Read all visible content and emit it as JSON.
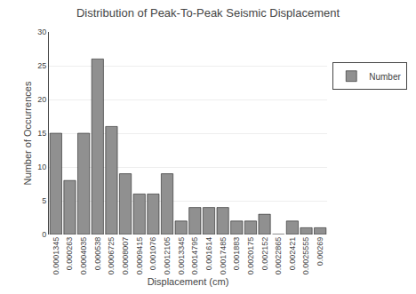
{
  "chart_data": {
    "type": "bar",
    "title": "Distribution of Peak-To-Peak Seismic Displacement",
    "xlabel": "Displacement (cm)",
    "ylabel": "Number of Occurrences",
    "categories": [
      "0.0001345",
      "0.000263",
      "0.0004035",
      "0.000538",
      "0.0006725",
      "0.0008007",
      "0.0009415",
      "0.001076",
      "0.0012105",
      "0.0013345",
      "0.0014795",
      "0.001614",
      "0.0017485",
      "0.001883",
      "0.0020175",
      "0.002152",
      "0.0022865",
      "0.002421",
      "0.0025555",
      "0.00269"
    ],
    "series": [
      {
        "name": "Number",
        "color": "#909090",
        "values": [
          15,
          8,
          15,
          26,
          16,
          9,
          6,
          6,
          9,
          2,
          4,
          4,
          4,
          2,
          2,
          3,
          0,
          2,
          1,
          1
        ]
      }
    ],
    "ylim": [
      0,
      30
    ],
    "yticks": [
      0,
      5,
      10,
      15,
      20,
      25,
      30
    ],
    "grid": true,
    "legend": "right"
  }
}
